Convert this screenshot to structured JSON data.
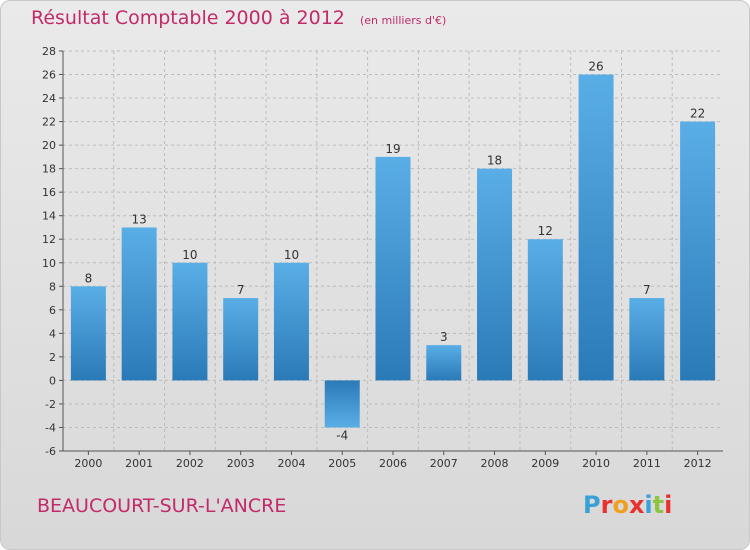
{
  "header": {
    "title": "Résultat Comptable 2000 à 2012",
    "subtitle": "(en milliers d'€)"
  },
  "footer": {
    "commune": "BEAUCOURT-SUR-L'ANCRE",
    "logo_text": "Proxiti",
    "logo_colors": [
      "#3aa0d8",
      "#e8322e",
      "#f0a020",
      "#e8322e",
      "#3aa0d8",
      "#8cc63f",
      "#e8322e"
    ]
  },
  "chart_data": {
    "type": "bar",
    "title": "Résultat Comptable 2000 à 2012",
    "subtitle": "(en milliers d'€)",
    "xlabel": "",
    "ylabel": "",
    "categories": [
      "2000",
      "2001",
      "2002",
      "2003",
      "2004",
      "2005",
      "2006",
      "2007",
      "2008",
      "2009",
      "2010",
      "2011",
      "2012"
    ],
    "values": [
      8,
      13,
      10,
      7,
      10,
      -4,
      19,
      3,
      18,
      12,
      26,
      7,
      22
    ],
    "ylim": [
      -6,
      28
    ],
    "yticks": [
      -6,
      -4,
      -2,
      0,
      2,
      4,
      6,
      8,
      10,
      12,
      14,
      16,
      18,
      20,
      22,
      24,
      26,
      28
    ],
    "grid": true,
    "bar_color_light": "#5aaee6",
    "bar_color_dark": "#2a7ab8"
  }
}
